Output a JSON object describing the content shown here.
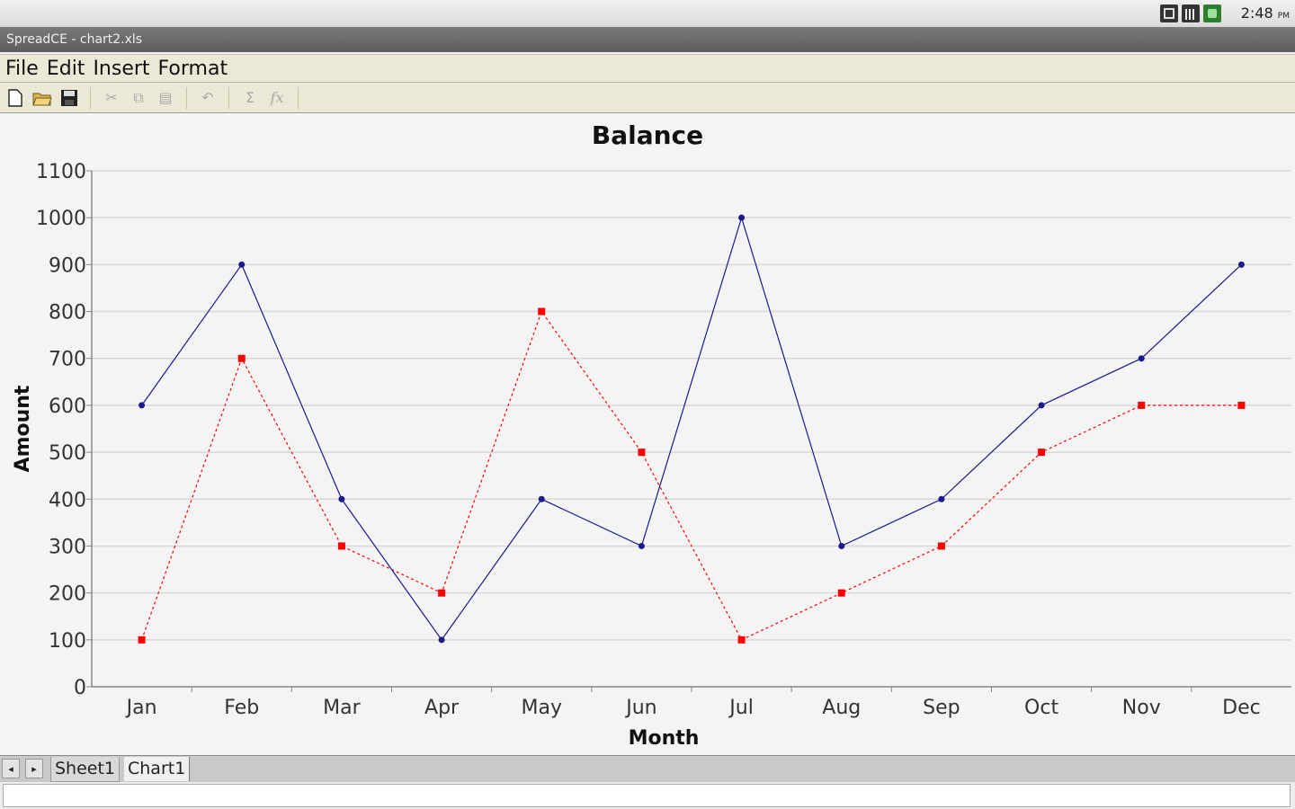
{
  "status": {
    "time": "2:48",
    "ampm": "PM",
    "icons": [
      "sd-card-icon",
      "signal-bars-icon",
      "battery-icon"
    ]
  },
  "window": {
    "title": "SpreadCE - chart2.xls"
  },
  "menu": [
    "File",
    "Edit",
    "Insert",
    "Format"
  ],
  "toolbar": {
    "icons": [
      "new-document-icon",
      "open-folder-icon",
      "save-icon",
      "cut-icon",
      "copy-icon",
      "paste-icon",
      "undo-icon",
      "sum-icon",
      "function-icon"
    ]
  },
  "tabs": {
    "sheet": "Sheet1",
    "chart": "Chart1"
  },
  "colors": {
    "series_a": "#1a1a8c",
    "series_b": "#ff0000"
  },
  "chart_data": {
    "type": "line",
    "title": "Balance",
    "xlabel": "Month",
    "ylabel": "Amount",
    "categories": [
      "Jan",
      "Feb",
      "Mar",
      "Apr",
      "May",
      "Jun",
      "Jul",
      "Aug",
      "Sep",
      "Oct",
      "Nov",
      "Dec"
    ],
    "ylim": [
      0,
      1100
    ],
    "yticks": [
      0,
      100,
      200,
      300,
      400,
      500,
      600,
      700,
      800,
      900,
      1000,
      1100
    ],
    "grid": true,
    "legend": "none",
    "series": [
      {
        "values": [
          600,
          900,
          400,
          100,
          400,
          300,
          1000,
          300,
          400,
          600,
          700,
          900
        ],
        "color": "#1a1a8c",
        "style": "solid"
      },
      {
        "values": [
          100,
          700,
          300,
          200,
          800,
          500,
          100,
          200,
          300,
          500,
          600,
          600
        ],
        "color": "#ff0000",
        "style": "dotted"
      }
    ]
  }
}
